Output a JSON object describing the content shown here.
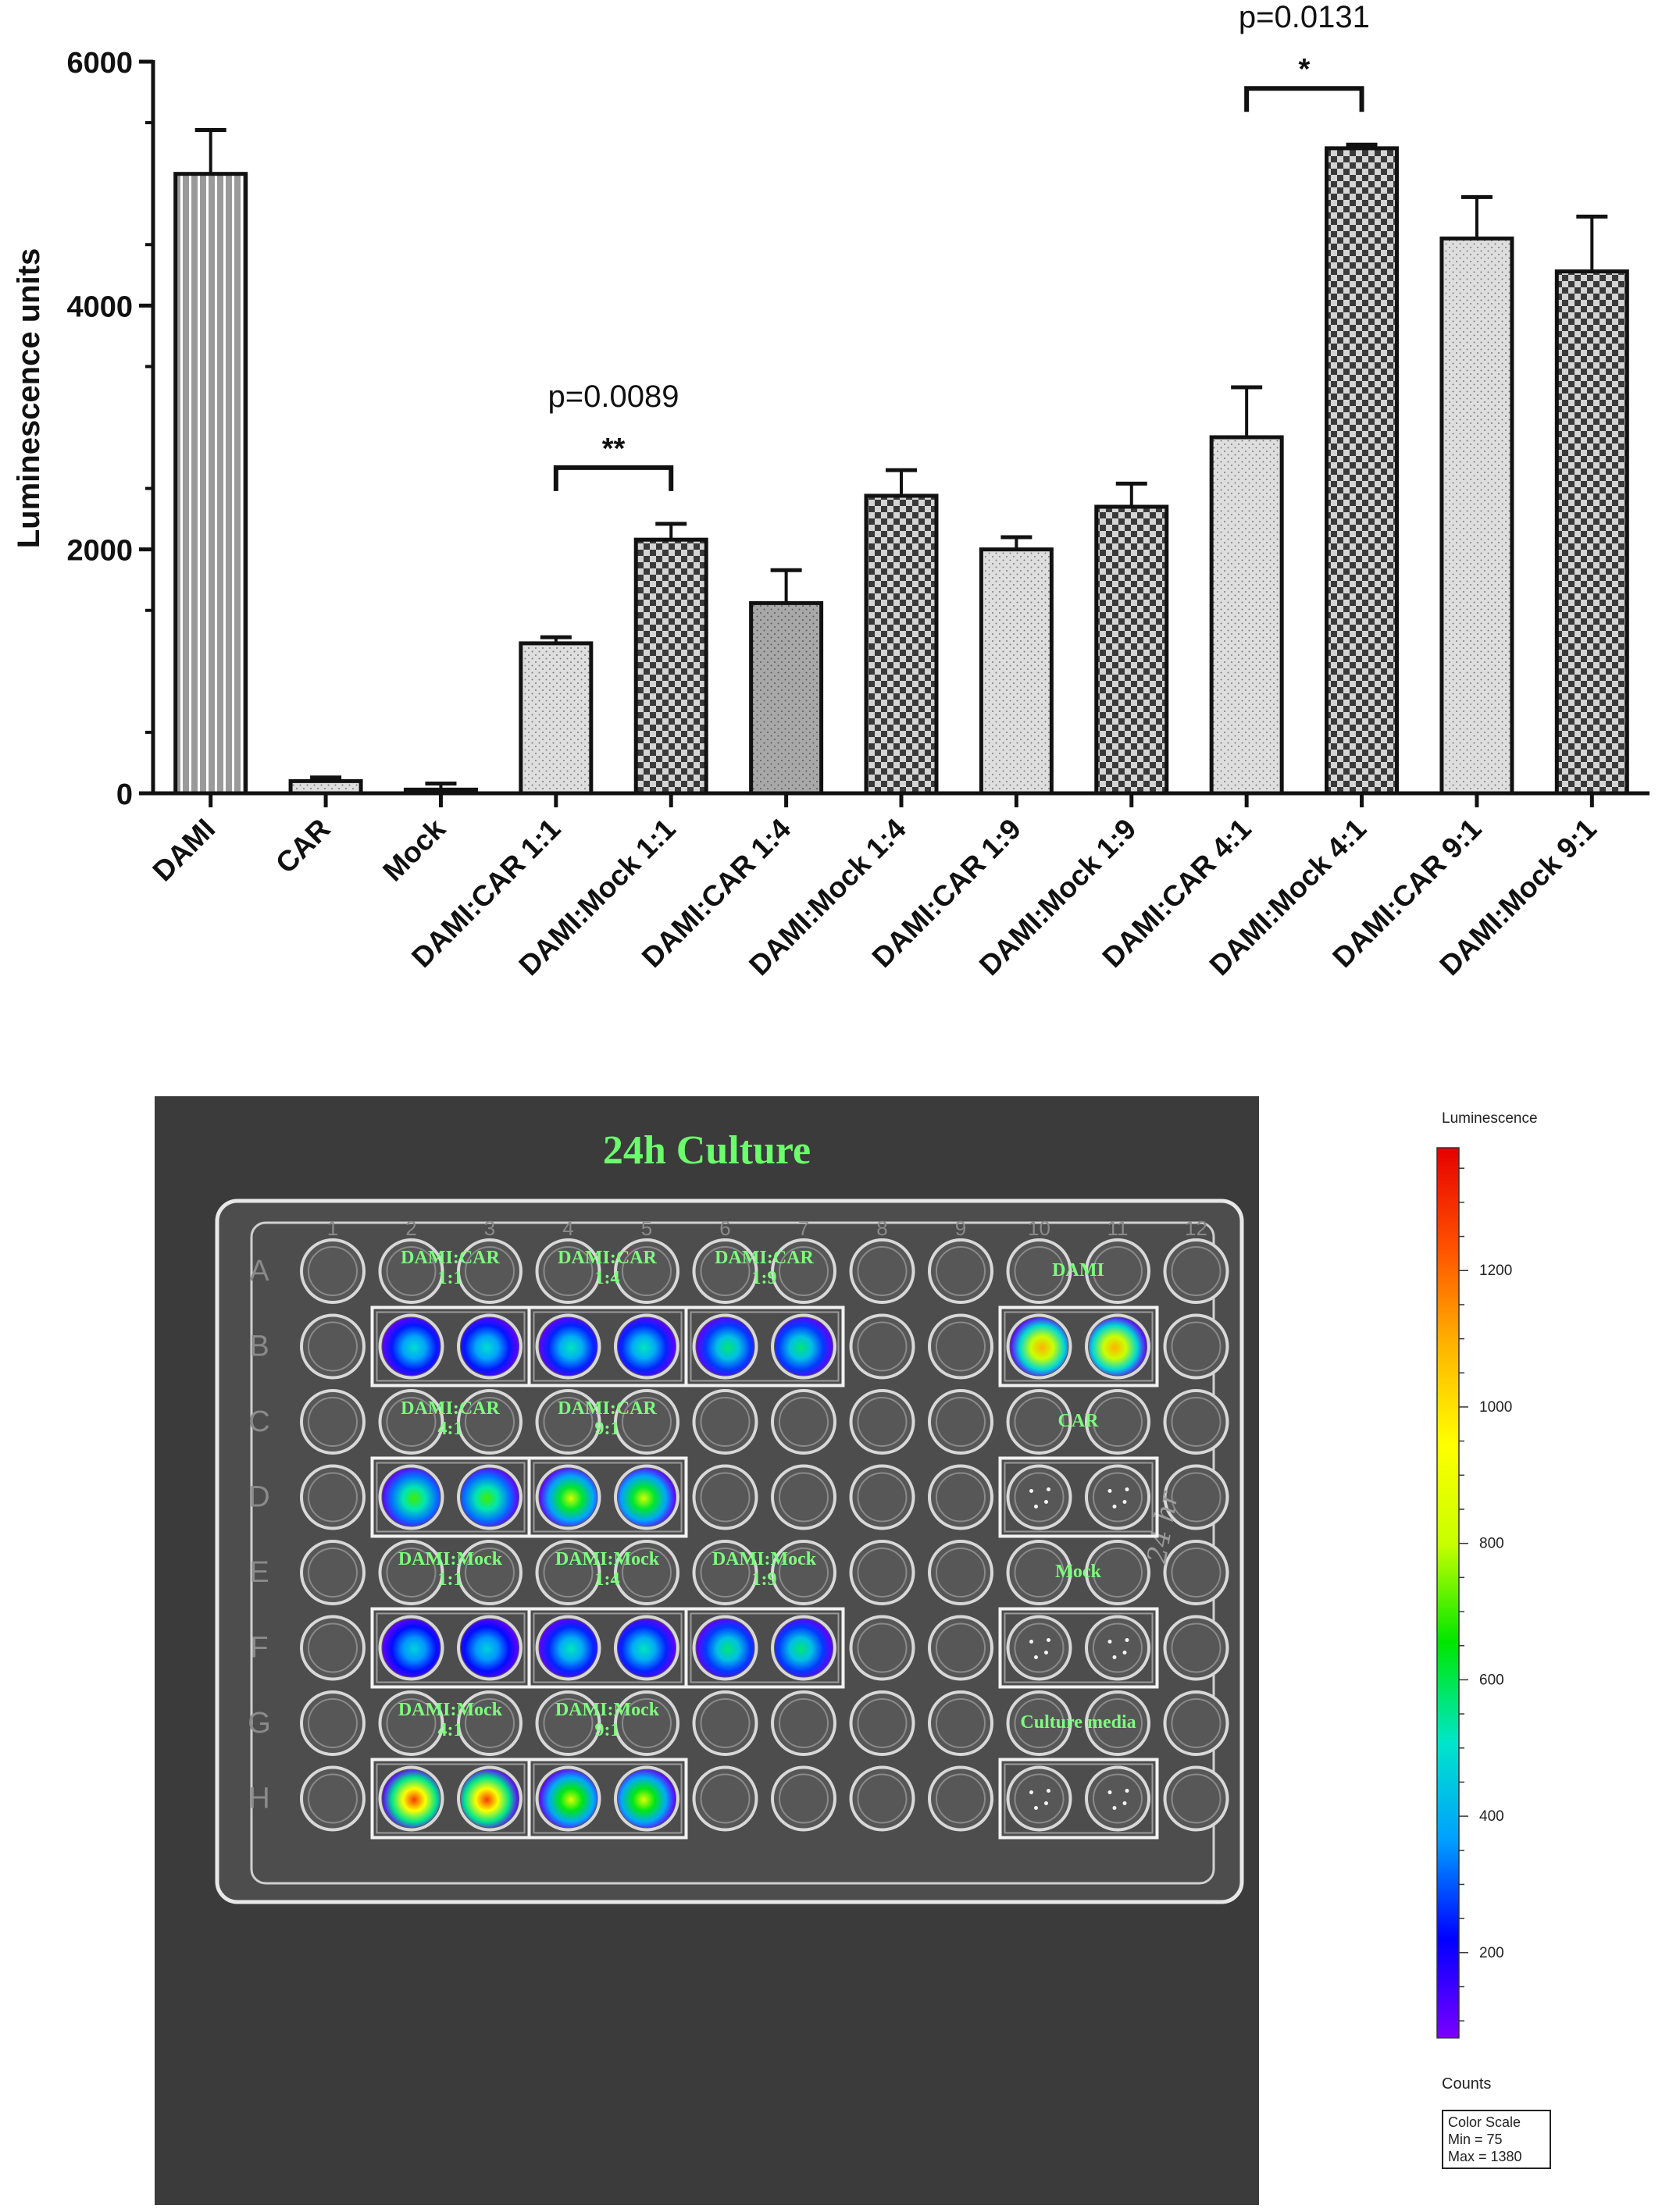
{
  "chart_data": {
    "type": "bar",
    "ylabel": "Luminescence units",
    "ylim": [
      0,
      6000
    ],
    "yticks": [
      0,
      2000,
      4000,
      6000
    ],
    "categories": [
      "DAMI",
      "CAR",
      "Mock",
      "DAMI:CAR 1:1",
      "DAMI:Mock 1:1",
      "DAMI:CAR 1:4",
      "DAMI:Mock 1:4",
      "DAMI:CAR 1:9",
      "DAMI:Mock 1:9",
      "DAMI:CAR 4:1",
      "DAMI:Mock 4:1",
      "DAMI:CAR 9:1",
      "DAMI:Mock 9:1"
    ],
    "values": [
      5080,
      100,
      30,
      1230,
      2080,
      1560,
      2440,
      2000,
      2350,
      2920,
      5290,
      4550,
      4280
    ],
    "errors": [
      360,
      30,
      50,
      50,
      130,
      270,
      210,
      100,
      190,
      410,
      30,
      340,
      450
    ],
    "patterns": [
      "vstripes",
      "dots-light",
      "dots-light",
      "dots-light",
      "checker",
      "dots-dark",
      "checker",
      "dots-light",
      "checker",
      "dots-light",
      "checker",
      "dots-light",
      "checker"
    ],
    "annotations": [
      {
        "from": 3,
        "to": 4,
        "stars": "**",
        "p_text": "p=0.0089"
      },
      {
        "from": 9,
        "to": 10,
        "stars": "*",
        "p_text": "p=0.0131"
      }
    ]
  },
  "plate_image": {
    "title": "24h Culture",
    "columns": [
      "1",
      "2",
      "3",
      "4",
      "5",
      "6",
      "7",
      "8",
      "9",
      "10",
      "11",
      "12"
    ],
    "rows": [
      "A",
      "B",
      "C",
      "D",
      "E",
      "F",
      "G",
      "H"
    ],
    "groups": [
      {
        "line1": "DAMI:CAR",
        "line2": "1:1",
        "intensity": 0.32
      },
      {
        "line1": "DAMI:CAR",
        "line2": "1:4",
        "intensity": 0.34
      },
      {
        "line1": "DAMI:CAR",
        "line2": "1:9",
        "intensity": 0.38
      },
      {
        "line1": "DAMI",
        "line2": "",
        "intensity": 0.78
      },
      {
        "line1": "DAMI:CAR",
        "line2": "4:1",
        "intensity": 0.48
      },
      {
        "line1": "DAMI:CAR",
        "line2": "9:1",
        "intensity": 0.58
      },
      {
        "line1": "CAR",
        "line2": "",
        "intensity": 0
      },
      {
        "line1": "DAMI:Mock",
        "line2": "1:1",
        "intensity": 0.3
      },
      {
        "line1": "DAMI:Mock",
        "line2": "1:4",
        "intensity": 0.34
      },
      {
        "line1": "DAMI:Mock",
        "line2": "1:9",
        "intensity": 0.38
      },
      {
        "line1": "Mock",
        "line2": "",
        "intensity": 0
      },
      {
        "line1": "DAMI:Mock",
        "line2": "4:1",
        "intensity": 0.92
      },
      {
        "line1": "DAMI:Mock",
        "line2": "9:1",
        "intensity": 0.6
      },
      {
        "line1": "Culture media",
        "line2": "",
        "intensity": 0
      }
    ],
    "handwriting": "24 hr"
  },
  "color_scale": {
    "title": "Luminescence",
    "ticks": [
      200,
      400,
      600,
      800,
      1000,
      1200
    ],
    "units": "Counts",
    "box_title": "Color Scale",
    "min_text": "Min = 75",
    "max_text": "Max = 1380",
    "min": 75,
    "max": 1380,
    "colors": [
      "#7a00ff",
      "#0000ff",
      "#00a0ff",
      "#00e6c8",
      "#00e600",
      "#c8ff00",
      "#ffff00",
      "#ffb400",
      "#ff5000",
      "#e60000"
    ]
  }
}
